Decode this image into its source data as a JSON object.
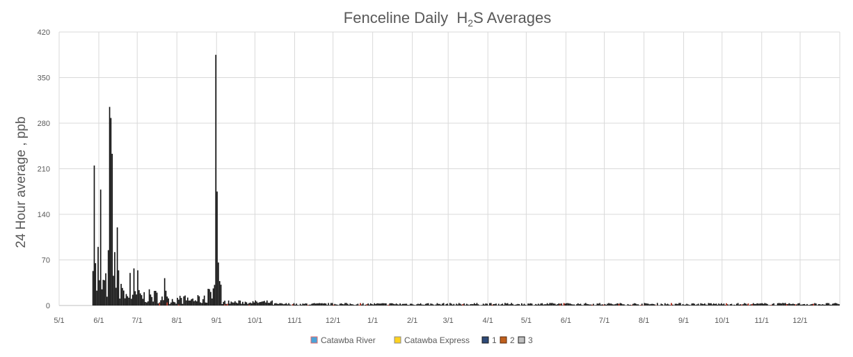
{
  "chart_data": {
    "type": "bar",
    "title": "Fenceline Daily H2S Averages",
    "title_parts": {
      "prefix": "Fenceline Daily  H",
      "subscript": "2",
      "suffix": "S Averages"
    },
    "xlabel": "",
    "ylabel": "24 Hour average , ppb",
    "ylim": [
      0,
      420
    ],
    "yticks": [
      0,
      70,
      140,
      210,
      280,
      350,
      420
    ],
    "xlim": [
      "5/1",
      "12/31"
    ],
    "xticks": [
      "5/1",
      "6/1",
      "7/1",
      "8/1",
      "9/1",
      "10/1",
      "11/1",
      "12/1",
      "1/1",
      "2/1",
      "3/1",
      "4/1",
      "5/1",
      "6/1",
      "7/1",
      "8/1",
      "9/1",
      "10/1",
      "11/1",
      "12/1"
    ],
    "grid": true,
    "legend_position": "bottom",
    "series": [
      {
        "name": "Catawba River",
        "color": "#4BA3D8",
        "border": "#E26A6A",
        "values": []
      },
      {
        "name": "Catawba Express",
        "color": "#FFD21F",
        "border": "#8A8A8A",
        "values": []
      },
      {
        "name": "1",
        "color": "#2E4A78",
        "border": "#1A1A1A",
        "values": []
      },
      {
        "name": "2",
        "color": "#C0601E",
        "border": "#5A2A0A",
        "values": []
      },
      {
        "name": "3",
        "color": "#BFBFBF",
        "border": "#1A1A1A",
        "values": []
      }
    ],
    "visible_peaks": [
      {
        "date": "5/27",
        "value": 53
      },
      {
        "date": "5/28",
        "value": 215
      },
      {
        "date": "5/29",
        "value": 65
      },
      {
        "date": "5/31",
        "value": 90
      },
      {
        "date": "6/2",
        "value": 178
      },
      {
        "date": "6/8",
        "value": 85
      },
      {
        "date": "6/9",
        "value": 305
      },
      {
        "date": "6/10",
        "value": 288
      },
      {
        "date": "6/11",
        "value": 233
      },
      {
        "date": "6/13",
        "value": 82
      },
      {
        "date": "6/15",
        "value": 120
      },
      {
        "date": "6/16",
        "value": 54
      },
      {
        "date": "6/25",
        "value": 50
      },
      {
        "date": "6/28",
        "value": 57
      },
      {
        "date": "7/1",
        "value": 54
      },
      {
        "date": "7/22",
        "value": 42
      },
      {
        "date": "8/31",
        "value": 385
      },
      {
        "date": "9/1",
        "value": 175
      },
      {
        "date": "9/2",
        "value": 66
      },
      {
        "date": "9/4",
        "value": 32
      }
    ]
  }
}
